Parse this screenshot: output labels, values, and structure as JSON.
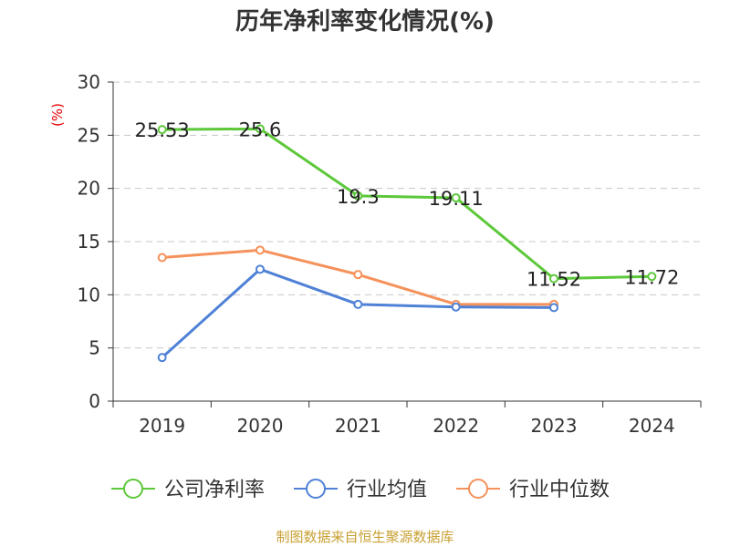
{
  "chart_data": {
    "type": "line",
    "title": "历年净利率变化情况(%)",
    "y_unit": "(%)",
    "categories": [
      "2019",
      "2020",
      "2021",
      "2022",
      "2023",
      "2024"
    ],
    "ylim": [
      0,
      30
    ],
    "yticks": [
      0,
      5,
      10,
      15,
      20,
      25,
      30
    ],
    "grid": true,
    "legend_position": "bottom",
    "series": [
      {
        "name": "公司净利率",
        "values": [
          25.53,
          25.6,
          19.3,
          19.11,
          11.52,
          11.72
        ],
        "labels": [
          "25.53",
          "25.6",
          "19.3",
          "19.11",
          "11.52",
          "11.72"
        ],
        "color": "#5cc83a"
      },
      {
        "name": "行业均值",
        "values": [
          4.1,
          12.4,
          9.1,
          8.85,
          8.8,
          null
        ],
        "color": "#4f81d6"
      },
      {
        "name": "行业中位数",
        "values": [
          13.5,
          14.2,
          11.9,
          9.1,
          9.1,
          null
        ],
        "color": "#f5915a"
      }
    ],
    "source": "制图数据来自恒生聚源数据库"
  }
}
